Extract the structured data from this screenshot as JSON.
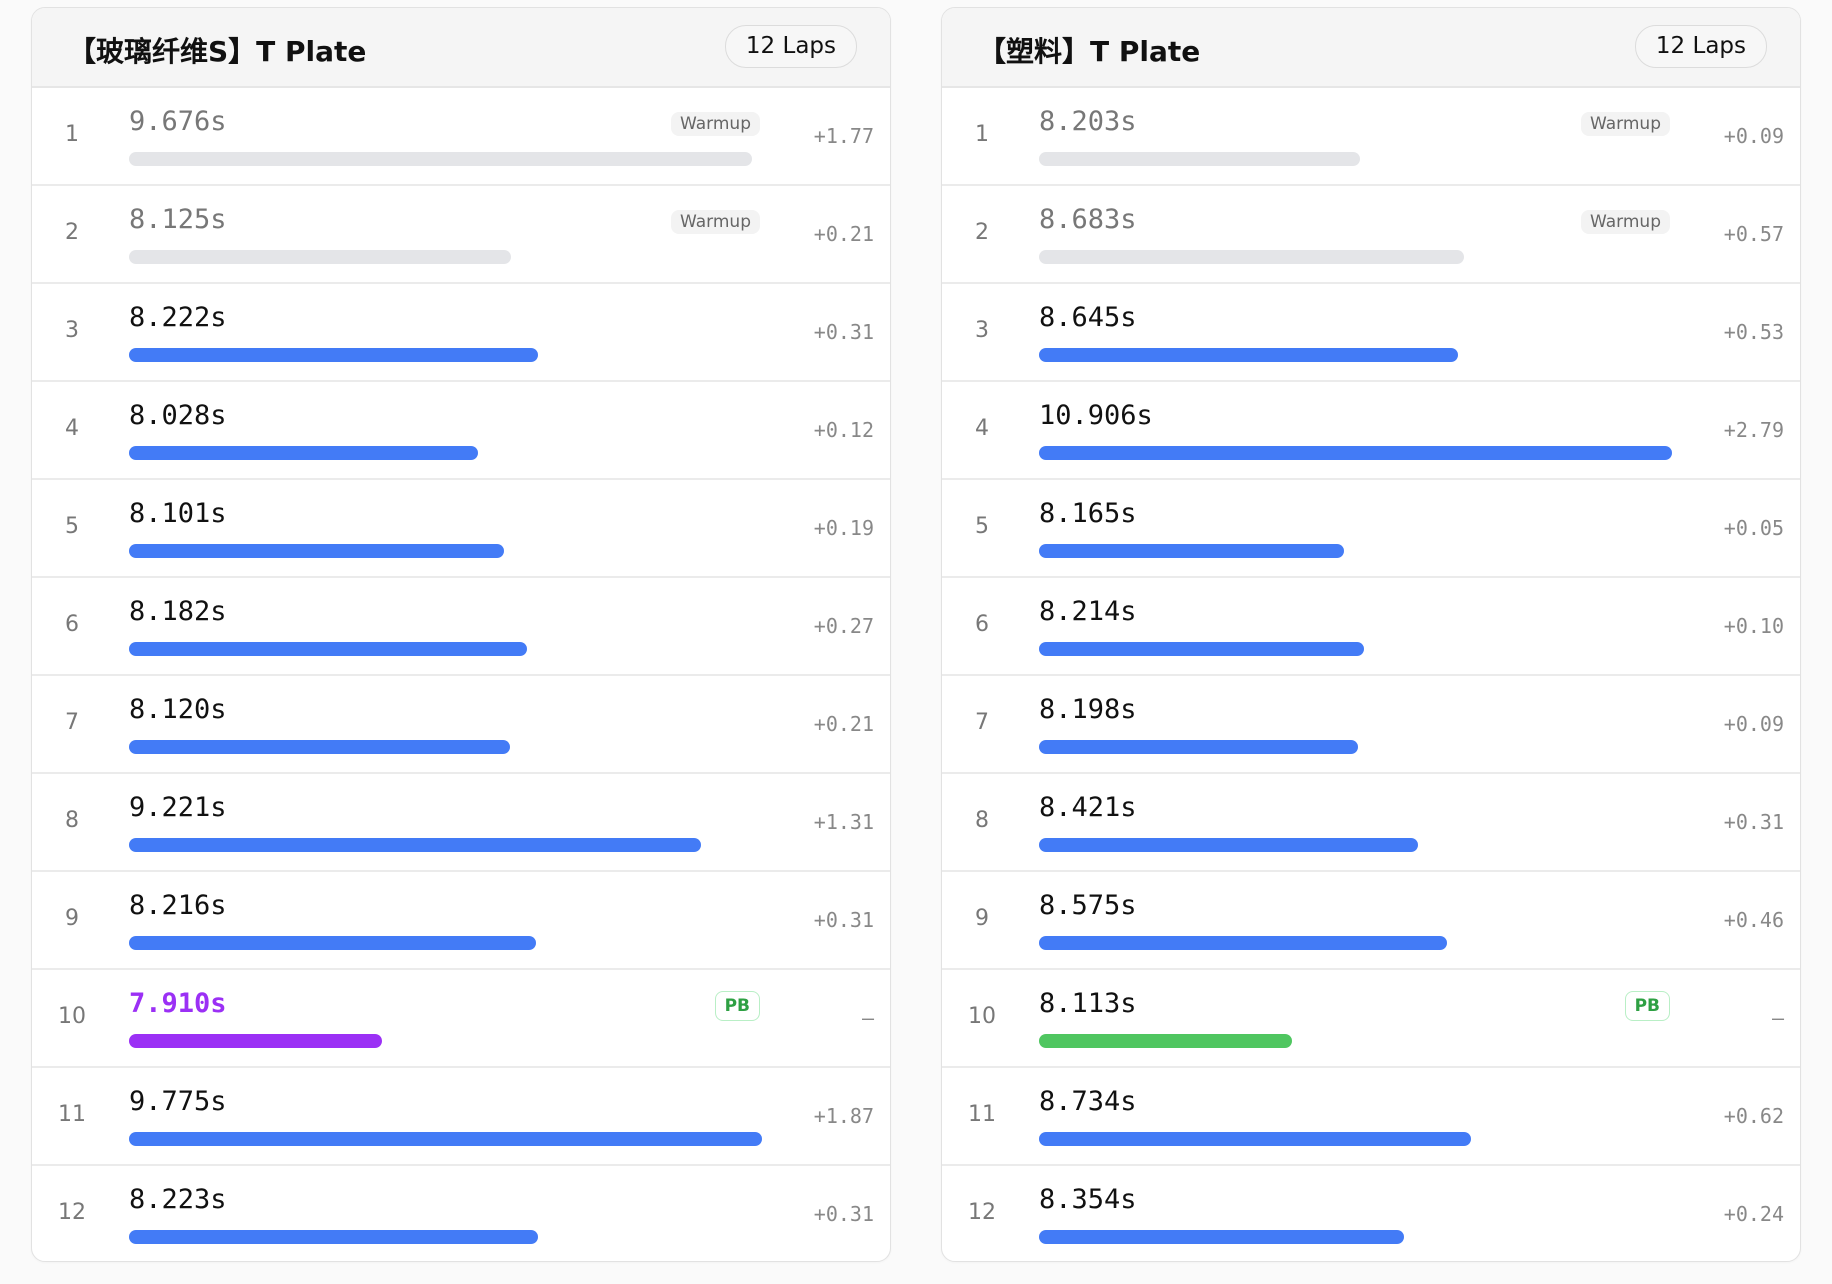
{
  "colors": {
    "normal": "#437bf6",
    "warmup": "#e4e5e8",
    "pb_purple": "#9b30f5",
    "pb_green": "#4fc660"
  },
  "panels": [
    {
      "title": "【玻璃纤维S】T Plate",
      "laps_label": "12 Laps",
      "laps": [
        {
          "n": "1",
          "time": "9.676s",
          "type": "warmup",
          "badge": "Warmup",
          "delta": "+1.77"
        },
        {
          "n": "2",
          "time": "8.125s",
          "type": "warmup",
          "badge": "Warmup",
          "delta": "+0.21"
        },
        {
          "n": "3",
          "time": "8.222s",
          "type": "normal",
          "delta": "+0.31"
        },
        {
          "n": "4",
          "time": "8.028s",
          "type": "normal",
          "delta": "+0.12"
        },
        {
          "n": "5",
          "time": "8.101s",
          "type": "normal",
          "delta": "+0.19"
        },
        {
          "n": "6",
          "time": "8.182s",
          "type": "normal",
          "delta": "+0.27"
        },
        {
          "n": "7",
          "time": "8.120s",
          "type": "normal",
          "delta": "+0.21"
        },
        {
          "n": "8",
          "time": "9.221s",
          "type": "normal",
          "delta": "+1.31"
        },
        {
          "n": "9",
          "time": "8.216s",
          "type": "normal",
          "delta": "+0.31"
        },
        {
          "n": "10",
          "time": "7.910s",
          "type": "pb",
          "pb_style": "purple",
          "badge": "PB",
          "delta": "–"
        },
        {
          "n": "11",
          "time": "9.775s",
          "type": "normal",
          "delta": "+1.87"
        },
        {
          "n": "12",
          "time": "8.223s",
          "type": "normal",
          "delta": "+0.31"
        }
      ]
    },
    {
      "title": "【塑料】T Plate",
      "laps_label": "12 Laps",
      "laps": [
        {
          "n": "1",
          "time": "8.203s",
          "type": "warmup",
          "badge": "Warmup",
          "delta": "+0.09"
        },
        {
          "n": "2",
          "time": "8.683s",
          "type": "warmup",
          "badge": "Warmup",
          "delta": "+0.57"
        },
        {
          "n": "3",
          "time": "8.645s",
          "type": "normal",
          "delta": "+0.53"
        },
        {
          "n": "4",
          "time": "10.906s",
          "type": "normal",
          "delta": "+2.79"
        },
        {
          "n": "5",
          "time": "8.165s",
          "type": "normal",
          "delta": "+0.05"
        },
        {
          "n": "6",
          "time": "8.214s",
          "type": "normal",
          "delta": "+0.10"
        },
        {
          "n": "7",
          "time": "8.198s",
          "type": "normal",
          "delta": "+0.09"
        },
        {
          "n": "8",
          "time": "8.421s",
          "type": "normal",
          "delta": "+0.31"
        },
        {
          "n": "9",
          "time": "8.575s",
          "type": "normal",
          "delta": "+0.46"
        },
        {
          "n": "10",
          "time": "8.113s",
          "type": "pb",
          "pb_style": "green",
          "badge": "PB",
          "delta": "–"
        },
        {
          "n": "11",
          "time": "8.734s",
          "type": "normal",
          "delta": "+0.62"
        },
        {
          "n": "12",
          "time": "8.354s",
          "type": "normal",
          "delta": "+0.24"
        }
      ]
    }
  ]
}
